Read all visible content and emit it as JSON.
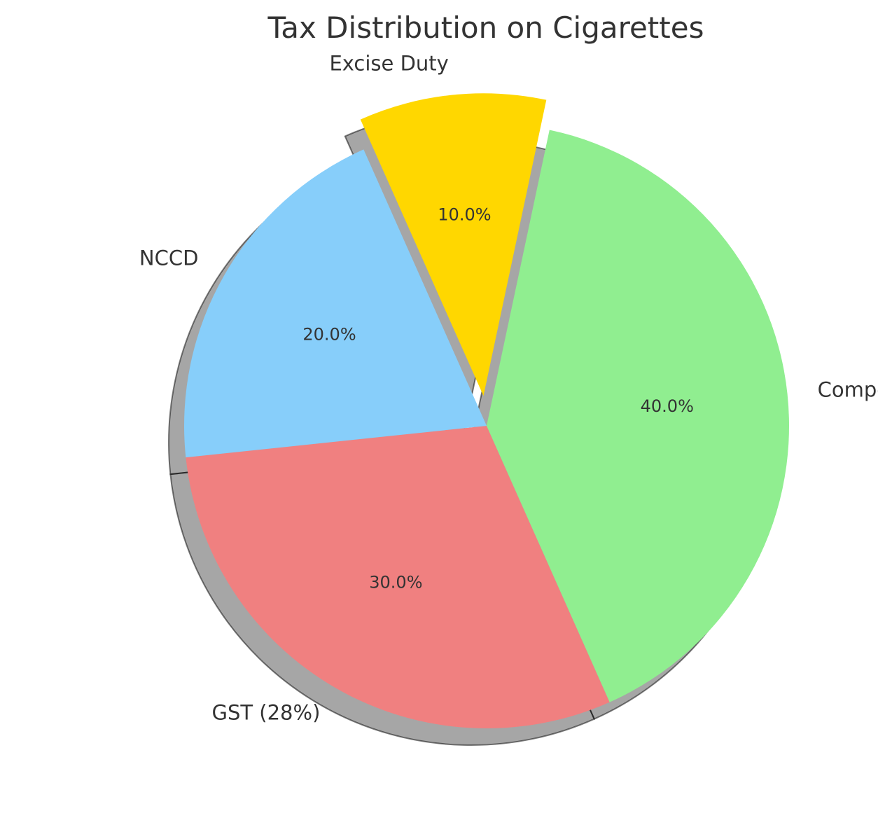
{
  "chart_data": {
    "type": "pie",
    "title": "Tax Distribution on Cigarettes",
    "slices": [
      {
        "label": "GST (28%)",
        "value": 30,
        "pct_label": "30.0%",
        "color": "#F08080",
        "exploded": false
      },
      {
        "label": "Compensation Cess",
        "value": 40,
        "pct_label": "40.0%",
        "color": "#90EE90",
        "exploded": false
      },
      {
        "label": "Excise Duty",
        "value": 10,
        "pct_label": "10.0%",
        "color": "#FFD700",
        "exploded": true
      },
      {
        "label": "NCCD",
        "value": 20,
        "pct_label": "20.0%",
        "color": "#87CEFA",
        "exploded": false
      }
    ],
    "shadow": true,
    "legend": "none"
  }
}
